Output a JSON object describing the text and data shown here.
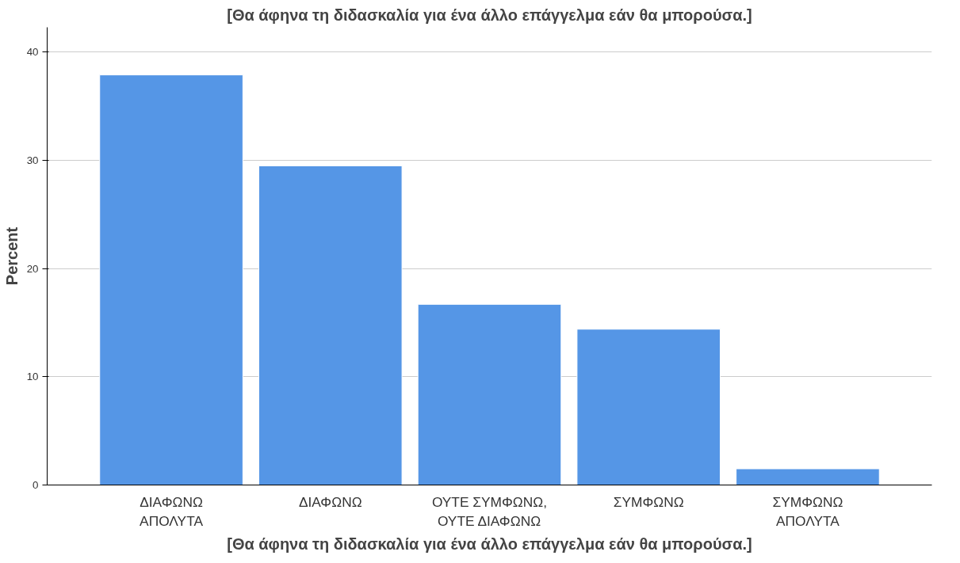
{
  "chart_data": {
    "type": "bar",
    "title": "[Θα άφηνα τη διδασκαλία για ένα άλλο επάγγελμα εάν θα μπορούσα.]",
    "xlabel": "[Θα άφηνα τη διδασκαλία για ένα άλλο επάγγελμα εάν θα μπορούσα.]",
    "ylabel": "Percent",
    "categories": [
      "ΔΙΑΦΩΝΩ ΑΠΟΛΥΤΑ",
      "ΔΙΑΦΩΝΩ",
      "ΟΥΤΕ ΣΥΜΦΩΝΩ, ΟΥΤΕ ΔΙΑΦΩΝΩ",
      "ΣΥΜΦΩΝΩ",
      "ΣΥΜΦΩΝΩ ΑΠΟΛΥΤΑ"
    ],
    "values": [
      37.9,
      29.5,
      16.7,
      14.4,
      1.5
    ],
    "color": "#5596e6",
    "ylim": [
      0,
      42.3
    ],
    "yticks": [
      0,
      10,
      20,
      30,
      40
    ],
    "grid": "y"
  }
}
